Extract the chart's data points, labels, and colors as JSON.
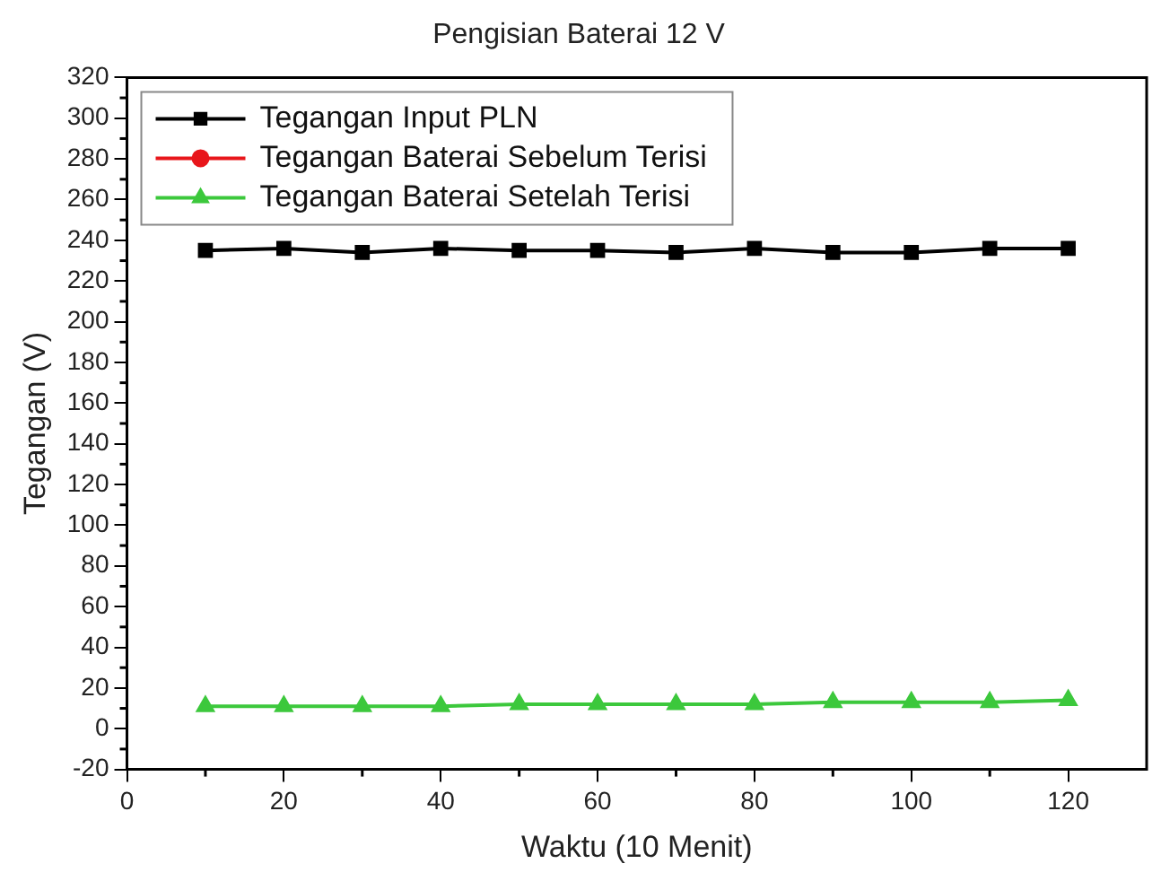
{
  "chart_data": {
    "type": "line",
    "title": "Pengisian Baterai 12 V",
    "xlabel": "Waktu (10 Menit)",
    "ylabel": "Tegangan (V)",
    "x": [
      10,
      20,
      30,
      40,
      50,
      60,
      70,
      80,
      90,
      100,
      110,
      120
    ],
    "series": [
      {
        "name": "Tegangan Input PLN",
        "color": "#000000",
        "marker": "square",
        "values": [
          235,
          236,
          234,
          236,
          235,
          235,
          234,
          236,
          234,
          234,
          236,
          236
        ]
      },
      {
        "name": "Tegangan Baterai Sebelum Terisi",
        "color": "#e8161b",
        "marker": "circle",
        "values": [
          null,
          null,
          null,
          null,
          null,
          null,
          null,
          null,
          null,
          null,
          null,
          null
        ]
      },
      {
        "name": "Tegangan Baterai Setelah Terisi",
        "color": "#3cc83c",
        "marker": "triangle",
        "values": [
          11,
          11,
          11,
          11,
          12,
          12,
          12,
          12,
          13,
          13,
          13,
          14
        ]
      }
    ],
    "xlim": [
      0,
      130
    ],
    "xticks": [
      0,
      20,
      40,
      60,
      80,
      100,
      120
    ],
    "ylim": [
      -20,
      320
    ],
    "yticks": [
      -20,
      0,
      20,
      40,
      60,
      80,
      100,
      120,
      140,
      160,
      180,
      200,
      220,
      240,
      260,
      280,
      300,
      320
    ],
    "grid": false,
    "legend": "top left",
    "line_style": "solid"
  }
}
